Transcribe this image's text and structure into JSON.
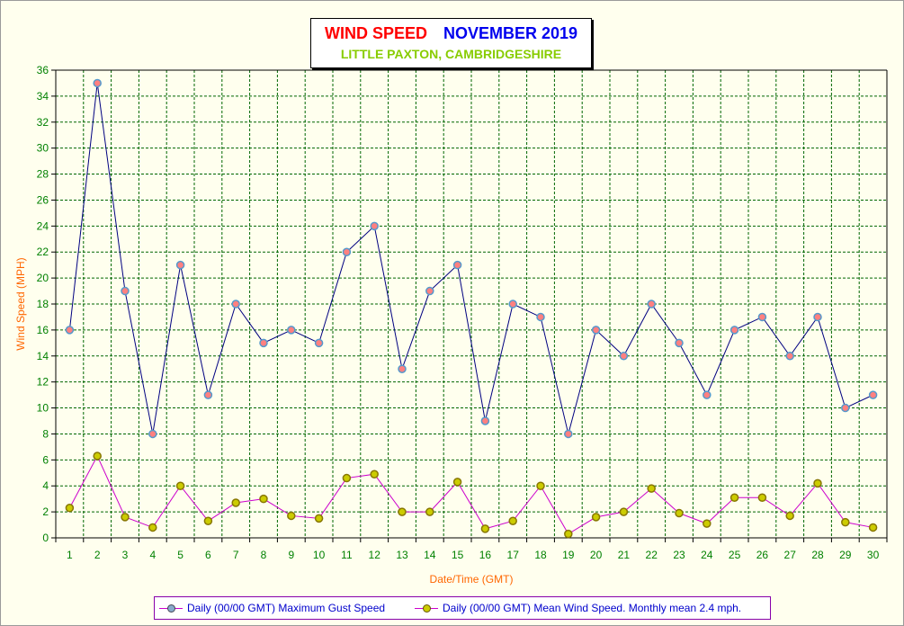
{
  "title": {
    "part1": "WIND SPEED",
    "part2": "NOVEMBER 2019",
    "subtitle": "LITTLE PAXTON, CAMBRIDGESHIRE"
  },
  "colors": {
    "title_red": "#ff0000",
    "title_blue": "#0000ee",
    "subtitle_green": "#88cc00",
    "gust_line": "#000080",
    "gust_marker": "#ff8080",
    "mean_line": "#cc00cc",
    "mean_marker": "#cccc00",
    "grid": "#006600",
    "tick_labels": "#008000",
    "axis_labels": "#ff6600"
  },
  "legend": {
    "gust": "Daily (00/00 GMT) Maximum Gust Speed",
    "mean": "Daily (00/00 GMT) Mean Wind Speed. Monthly mean 2.4 mph."
  },
  "chart_data": {
    "type": "line",
    "xlabel": "Date/Time (GMT)",
    "ylabel": "Wind Speed (MPH)",
    "ylim": [
      0,
      36
    ],
    "grid": true,
    "legend_position": "bottom",
    "x": [
      "1",
      "2",
      "3",
      "4",
      "5",
      "6",
      "7",
      "8",
      "9",
      "10",
      "11",
      "12",
      "13",
      "14",
      "15",
      "16",
      "17",
      "18",
      "19",
      "20",
      "21",
      "22",
      "23",
      "24",
      "25",
      "26",
      "27",
      "28",
      "29",
      "30"
    ],
    "yticks": [
      "0",
      "2",
      "4",
      "6",
      "8",
      "10",
      "12",
      "14",
      "16",
      "18",
      "20",
      "22",
      "24",
      "26",
      "28",
      "30",
      "32",
      "34",
      "36"
    ],
    "series": [
      {
        "name": "Daily (00/00 GMT) Maximum Gust Speed",
        "values": [
          16,
          35,
          19,
          8,
          21,
          11,
          18,
          15,
          16,
          15,
          22,
          24,
          13,
          19,
          21,
          9,
          18,
          17,
          8,
          16,
          14,
          18,
          15,
          11,
          16,
          17,
          14,
          17,
          10,
          11
        ]
      },
      {
        "name": "Daily (00/00 GMT) Mean Wind Speed. Monthly mean 2.4 mph.",
        "values": [
          2.3,
          6.3,
          1.6,
          0.8,
          4.0,
          1.3,
          2.7,
          3.0,
          1.7,
          1.5,
          4.6,
          4.9,
          2.0,
          2.0,
          4.3,
          0.7,
          1.3,
          4.0,
          0.3,
          1.6,
          2.0,
          3.8,
          1.9,
          1.1,
          3.1,
          3.1,
          1.7,
          4.2,
          1.2,
          0.8
        ]
      }
    ]
  }
}
